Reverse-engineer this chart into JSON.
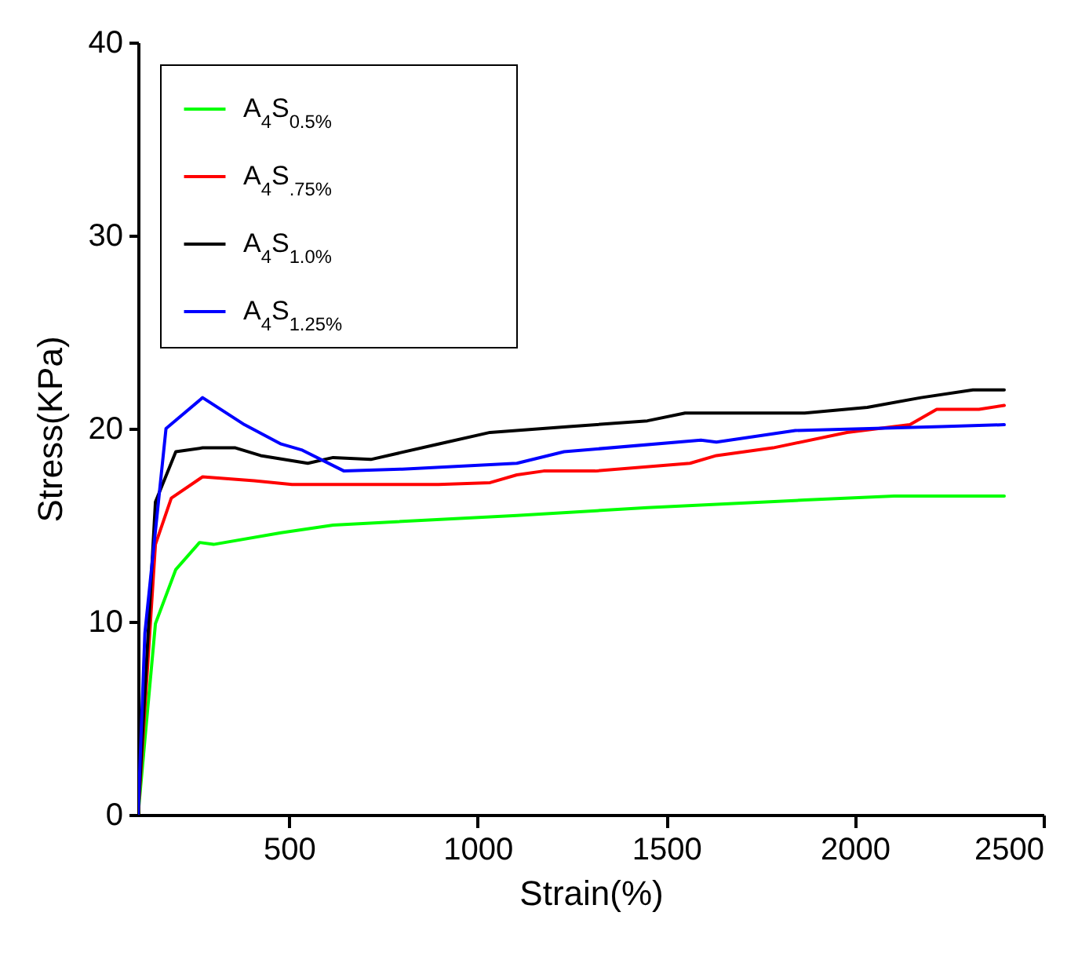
{
  "chart_data": {
    "type": "line",
    "xlabel": "Strain(%)",
    "ylabel": "Stress(KPa)",
    "xlim": [
      100,
      2500
    ],
    "xticks": [
      500,
      1000,
      1500,
      2000,
      2500
    ],
    "ylim": [
      0,
      40
    ],
    "yticks": [
      0,
      10,
      20,
      30,
      40
    ],
    "legend": "top left",
    "line_style": "solid",
    "series": [
      {
        "name": "A$_{4}$S$_{0.5%}$",
        "color": "#00ff00",
        "x": [
          100,
          146,
          200,
          263,
          300,
          479,
          617,
          1104,
          1450,
          1867,
          2104,
          2396
        ],
        "values": [
          0,
          9.9,
          12.7,
          14.1,
          14.0,
          14.6,
          15.0,
          15.5,
          15.9,
          16.3,
          16.5,
          16.5
        ]
      },
      {
        "name": "A$_{4}$S$_{.75%}$",
        "color": "#ff0000",
        "x": [
          100,
          146,
          188,
          271,
          408,
          508,
          896,
          1033,
          1104,
          1175,
          1312,
          1563,
          1633,
          1783,
          1979,
          2146,
          2217,
          2329,
          2396
        ],
        "values": [
          0,
          14.0,
          16.4,
          17.5,
          17.3,
          17.1,
          17.1,
          17.2,
          17.6,
          17.8,
          17.8,
          18.2,
          18.6,
          19.0,
          19.8,
          20.2,
          21.0,
          21.0,
          21.2
        ]
      },
      {
        "name": "A$_{4}$S$_{1.0%}$",
        "color": "#000000",
        "x": [
          100,
          146,
          200,
          271,
          358,
          425,
          550,
          617,
          717,
          896,
          1033,
          1242,
          1450,
          1550,
          1729,
          1867,
          2033,
          2175,
          2313,
          2396
        ],
        "values": [
          0,
          16.2,
          18.8,
          19.0,
          19.0,
          18.6,
          18.2,
          18.5,
          18.4,
          19.2,
          19.8,
          20.1,
          20.4,
          20.8,
          20.8,
          20.8,
          21.1,
          21.6,
          22.0,
          22.0
        ]
      },
      {
        "name": "A$_{4}$S$_{1.25%}$",
        "color": "#0000ff",
        "x": [
          100,
          118,
          174,
          271,
          382,
          479,
          533,
          646,
          800,
          1104,
          1229,
          1592,
          1633,
          1842,
          2229,
          2396
        ],
        "values": [
          0,
          9.4,
          20.0,
          21.6,
          20.2,
          19.2,
          18.9,
          17.8,
          17.9,
          18.2,
          18.8,
          19.4,
          19.3,
          19.9,
          20.1,
          20.2
        ]
      }
    ]
  }
}
